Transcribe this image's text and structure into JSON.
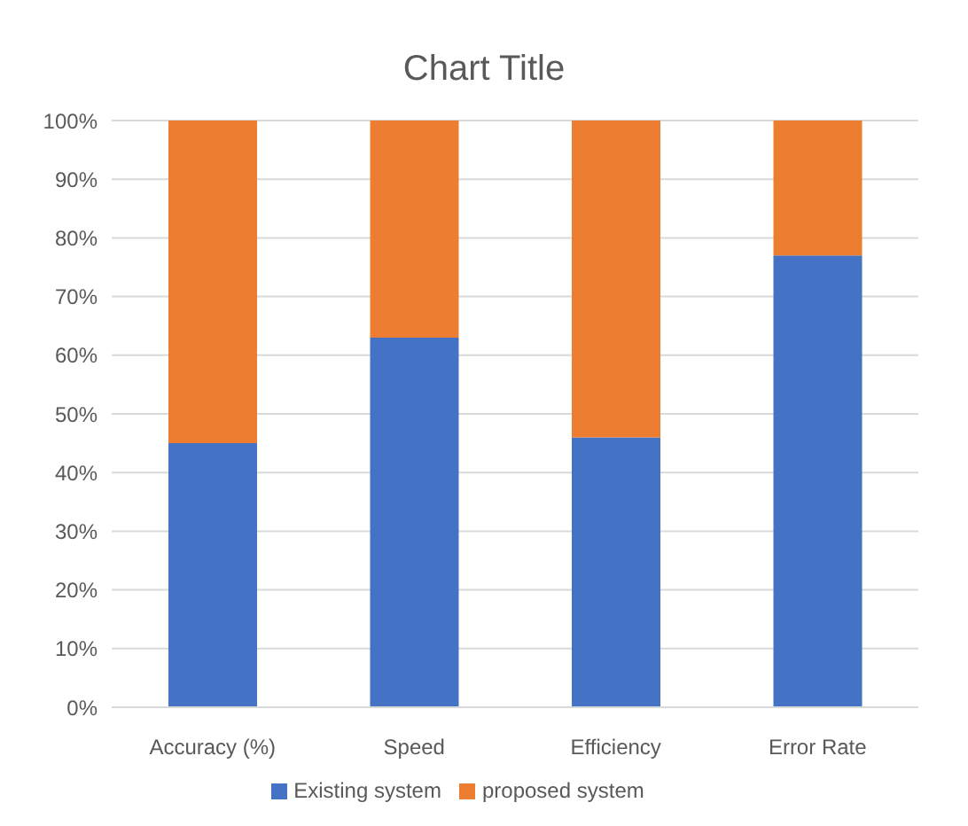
{
  "chart_data": {
    "type": "bar",
    "title": "Chart Title",
    "categories": [
      "Accuracy (%)",
      "Speed",
      "Efficiency",
      "Error Rate"
    ],
    "stacked": true,
    "series": [
      {
        "name": "Existing system",
        "color": "#4472c4",
        "values": [
          45,
          63,
          46,
          77
        ]
      },
      {
        "name": "proposed system",
        "color": "#ed7d31",
        "values": [
          55,
          37,
          54,
          23
        ]
      }
    ],
    "ylim": [
      0,
      100
    ],
    "yticks": [
      {
        "value": 0,
        "label": "0%"
      },
      {
        "value": 10,
        "label": "10%"
      },
      {
        "value": 20,
        "label": "20%"
      },
      {
        "value": 30,
        "label": "30%"
      },
      {
        "value": 40,
        "label": "40%"
      },
      {
        "value": 50,
        "label": "50%"
      },
      {
        "value": 60,
        "label": "60%"
      },
      {
        "value": 70,
        "label": "70%"
      },
      {
        "value": 80,
        "label": "80%"
      },
      {
        "value": 90,
        "label": "90%"
      },
      {
        "value": 100,
        "label": "100%"
      }
    ],
    "grid": "y",
    "legend": "bottom"
  }
}
